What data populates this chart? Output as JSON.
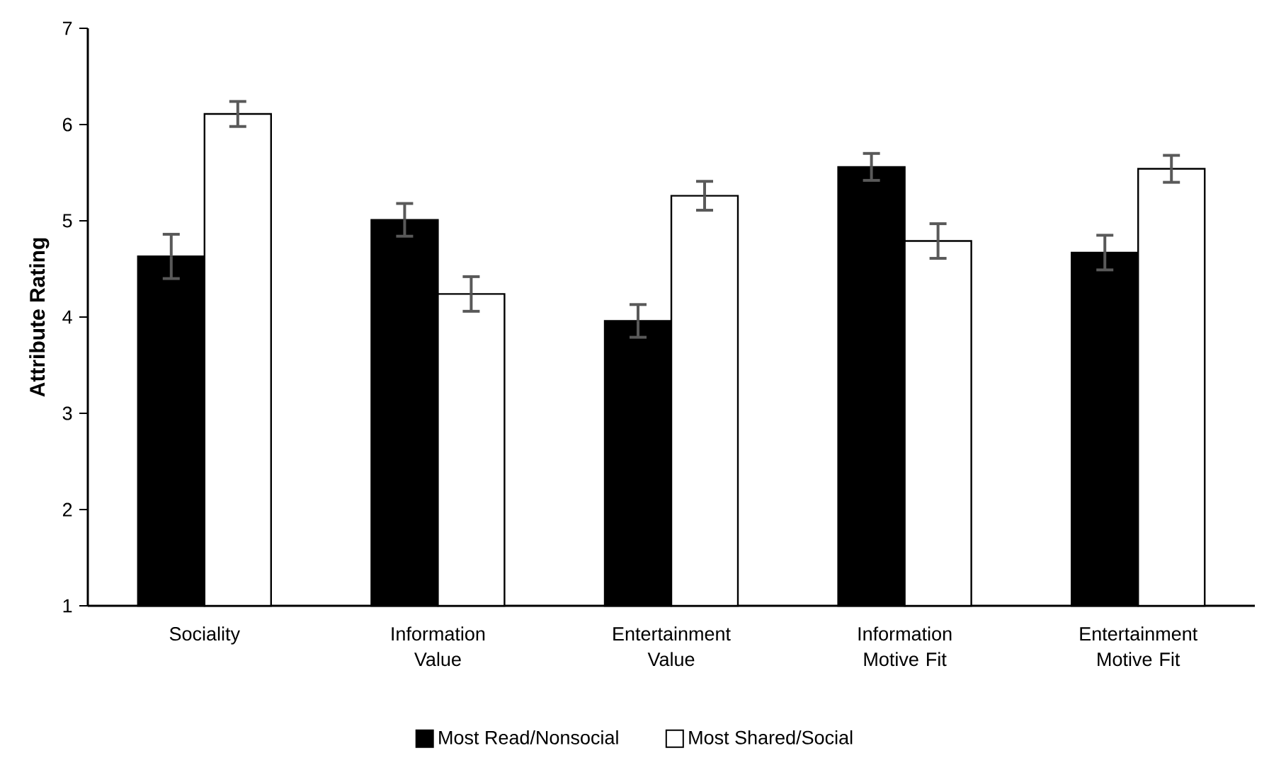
{
  "chart_data": {
    "type": "bar",
    "ylabel": "Attribute Rating",
    "categories": [
      "Sociality",
      "Information Value",
      "Entertainment Value",
      "Information Motive Fit",
      "Entertainment Motive Fit"
    ],
    "series": [
      {
        "name": "Most Read/Nonsocial",
        "color": "#000000",
        "values": [
          4.63,
          5.01,
          3.96,
          5.56,
          4.67
        ],
        "errors": [
          0.23,
          0.17,
          0.17,
          0.14,
          0.18
        ]
      },
      {
        "name": "Most Shared/Social",
        "color": "#ffffff",
        "values": [
          6.11,
          4.24,
          5.26,
          4.79,
          5.54
        ],
        "errors": [
          0.13,
          0.18,
          0.15,
          0.18,
          0.14
        ]
      }
    ],
    "ylim": [
      1,
      7
    ],
    "yticks": [
      1,
      2,
      3,
      4,
      5,
      6,
      7
    ],
    "grid": false,
    "legend": "bottom"
  }
}
